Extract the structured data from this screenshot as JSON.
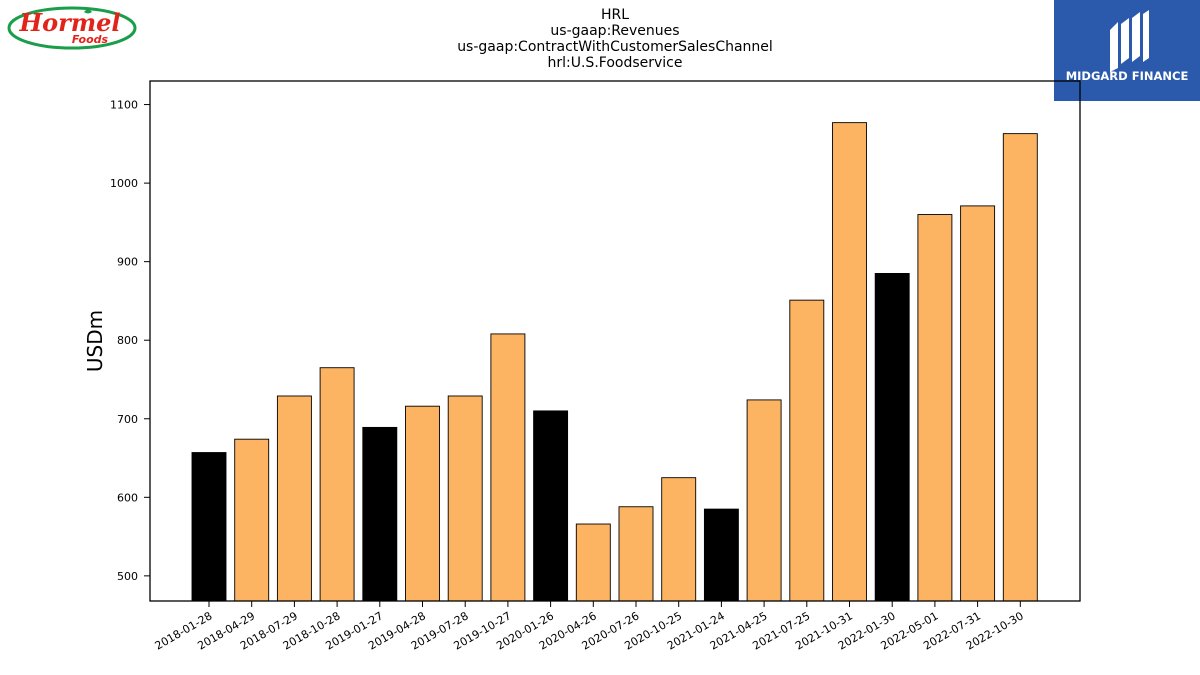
{
  "title_lines": [
    "HRL",
    "us-gaap:Revenues",
    "us-gaap:ContractWithCustomerSalesChannel",
    "hrl:U.S.Foodservice"
  ],
  "logos": {
    "company": {
      "name_line1": "Hormel",
      "name_line2": "Foods",
      "color": "#e2231a",
      "ring": "#1a9e4a"
    },
    "brand": {
      "name": "MIDGARD FINANCE",
      "background": "#2b5aad"
    }
  },
  "chart_data": {
    "type": "bar",
    "ylabel": "USDm",
    "xlabel": "",
    "ylim": [
      468,
      1130
    ],
    "yticks": [
      500,
      600,
      700,
      800,
      900,
      1000,
      1100
    ],
    "categories": [
      "2018-01-28",
      "2018-04-29",
      "2018-07-29",
      "2018-10-28",
      "2019-01-27",
      "2019-04-28",
      "2019-07-28",
      "2019-10-27",
      "2020-01-26",
      "2020-04-26",
      "2020-07-26",
      "2020-10-25",
      "2021-01-24",
      "2021-04-25",
      "2021-07-25",
      "2021-10-31",
      "2022-01-30",
      "2022-05-01",
      "2022-07-31",
      "2022-10-30"
    ],
    "values": [
      657,
      674,
      729,
      765,
      689,
      716,
      729,
      808,
      710,
      566,
      588,
      625,
      585,
      724,
      851,
      1077,
      885,
      960,
      971,
      1063
    ],
    "highlighted": [
      true,
      false,
      false,
      false,
      true,
      false,
      false,
      false,
      true,
      false,
      false,
      false,
      true,
      false,
      false,
      false,
      true,
      false,
      false,
      false
    ],
    "colors": {
      "bar": "#fdb462",
      "highlight": "#000000",
      "edge": "#000000"
    },
    "grid": false,
    "legend": "none"
  }
}
